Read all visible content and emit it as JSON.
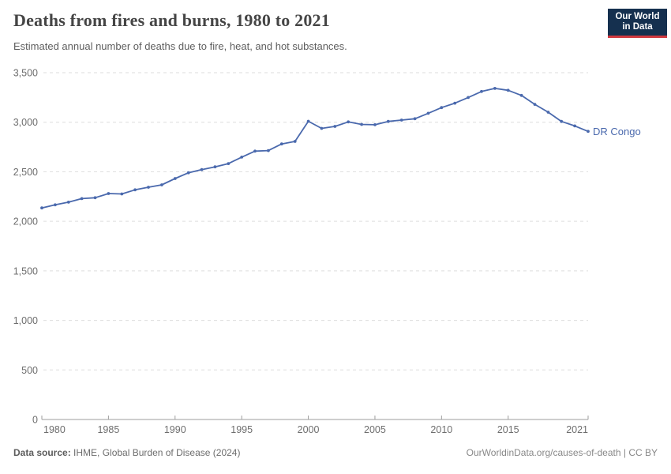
{
  "header": {
    "title": "Deaths from fires and burns, 1980 to 2021",
    "subtitle": "Estimated annual number of deaths due to fire, heat, and hot substances.",
    "logo": {
      "line1": "Our World",
      "line2": "in Data",
      "bg_color": "#15304f",
      "accent_color": "#d0393f"
    }
  },
  "chart_data": {
    "type": "line",
    "title": "Deaths from fires and burns, 1980 to 2021",
    "xlabel": "",
    "ylabel": "",
    "x": [
      1980,
      1981,
      1982,
      1983,
      1984,
      1985,
      1986,
      1987,
      1988,
      1989,
      1990,
      1991,
      1992,
      1993,
      1994,
      1995,
      1996,
      1997,
      1998,
      1999,
      2000,
      2001,
      2002,
      2003,
      2004,
      2005,
      2006,
      2007,
      2008,
      2009,
      2010,
      2011,
      2012,
      2013,
      2014,
      2015,
      2016,
      2017,
      2018,
      2019,
      2020,
      2021
    ],
    "series": [
      {
        "name": "DR Congo",
        "color": "#4a69ad",
        "values": [
          2135,
          2166,
          2193,
          2229,
          2238,
          2280,
          2276,
          2318,
          2344,
          2368,
          2432,
          2490,
          2522,
          2550,
          2582,
          2648,
          2708,
          2714,
          2781,
          2806,
          3010,
          2938,
          2958,
          3003,
          2978,
          2975,
          3008,
          3022,
          3035,
          3090,
          3148,
          3192,
          3250,
          3310,
          3341,
          3322,
          3270,
          3180,
          3101,
          3008,
          2963,
          2908
        ]
      }
    ],
    "xlim": [
      1980,
      2021
    ],
    "ylim": [
      0,
      3500
    ],
    "xticks": [
      1980,
      1985,
      1990,
      1995,
      2000,
      2005,
      2010,
      2015,
      2021
    ],
    "yticks": [
      0,
      500,
      1000,
      1500,
      2000,
      2500,
      3000,
      3500
    ],
    "grid": "horizontal-dashed",
    "legend_position": "end-of-line-label",
    "colors": {
      "gridline": "#dedede",
      "axis_line": "#9e9e9e",
      "tick_label": "#6e6e6e"
    }
  },
  "footer": {
    "source_label": "Data source:",
    "source_text": " IHME, Global Burden of Disease (2024)",
    "link_text": "OurWorldinData.org/causes-of-death | CC BY"
  }
}
